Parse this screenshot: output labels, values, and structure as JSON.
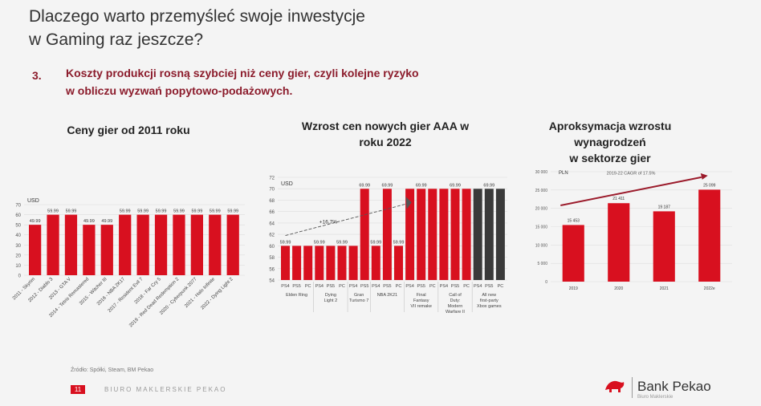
{
  "slide": {
    "title": "Dlaczego warto przemyśleć swoje inwestycje\nw Gaming raz jeszcze?",
    "point_number": "3.",
    "point_text": "Koszty produkcji rosną szybciej niż ceny gier, czyli kolejne ryzyko\nw obliczu wyzwań popytowo-podażowych."
  },
  "footer": {
    "source": "Źródło: Spółki, Steam, BM Pekao",
    "page": "11",
    "label": "BIURO MAKLERSKIE PEKAO"
  },
  "logo": {
    "name": "Bank Pekao",
    "sub": "Biuro Maklerskie"
  },
  "colors": {
    "bar_red": "#d8101f",
    "bar_dark": "#3a3a3a",
    "title_red": "#8b1b2b",
    "trend": "#9b1b2b"
  },
  "chart_data": [
    {
      "type": "bar",
      "title": "Ceny gier od 2011 roku",
      "ylabel": "USD",
      "ylim": [
        0,
        70
      ],
      "yticks": [
        0,
        10,
        20,
        30,
        40,
        50,
        60,
        70
      ],
      "categories": [
        "2011 - Skyrim",
        "2012 - Diablo 3",
        "2013 - GTA V",
        "2014 - Tetris Remastered",
        "2015 - Witcher III",
        "2016 - NBA 2K17",
        "2017 - Resident Evil 7",
        "2018 - Far Cry 5",
        "2019 - Red Dead Redemption 2",
        "2020 - Cyberpunk 2077",
        "2021 - Halo Infinite",
        "2022 - Dying Light 2"
      ],
      "values": [
        49.99,
        59.99,
        59.99,
        49.99,
        49.99,
        59.99,
        59.99,
        59.99,
        59.99,
        59.99,
        59.99,
        59.99
      ],
      "labels": [
        "49.99",
        "59.99",
        "59.99",
        "49.99",
        "49.99",
        "59.99",
        "59.99",
        "59.99",
        "59.99",
        "59.99",
        "59.99",
        "59.99"
      ]
    },
    {
      "type": "bar",
      "title": "Wzrost cen nowych gier AAA w\nroku 2022",
      "ylabel": "USD",
      "ylim": [
        54,
        72
      ],
      "yticks": [
        54,
        56,
        58,
        60,
        62,
        64,
        66,
        68,
        70,
        72
      ],
      "annotation": "+16,7%",
      "categories": [
        "PS4",
        "PS5",
        "PC",
        "PS4",
        "PS5",
        "PC",
        "PS4",
        "PS5",
        "PS4",
        "PS5",
        "PC",
        "PS4",
        "PS5",
        "PC",
        "PS4",
        "PS5",
        "PC",
        "PS4",
        "PS5",
        "PC"
      ],
      "values": [
        59.99,
        59.99,
        59.99,
        59.99,
        59.99,
        59.99,
        59.99,
        69.99,
        59.99,
        69.99,
        59.99,
        69.99,
        69.99,
        69.99,
        69.99,
        69.99,
        69.99,
        69.99,
        69.99,
        69.99
      ],
      "value_labels": [
        "59.99",
        "",
        "",
        "59.99",
        "",
        "59.99",
        "",
        "69.99",
        "59.99",
        "69.99",
        "59.99",
        "",
        "69.99",
        "",
        "",
        "69.99",
        "",
        "",
        "69.99",
        ""
      ],
      "bar_colors": [
        "red",
        "red",
        "red",
        "red",
        "red",
        "red",
        "red",
        "red",
        "red",
        "red",
        "red",
        "red",
        "red",
        "red",
        "red",
        "red",
        "red",
        "dark",
        "dark",
        "dark"
      ],
      "groups": [
        {
          "name": "Elden Ring",
          "span": [
            0,
            2
          ]
        },
        {
          "name": "Dying Light 2",
          "span": [
            3,
            5
          ]
        },
        {
          "name": "Gran Turismo 7",
          "span": [
            6,
            7
          ]
        },
        {
          "name": "NBA 2K21",
          "span": [
            8,
            10
          ]
        },
        {
          "name": "Final Fantasy VII remake",
          "span": [
            11,
            13
          ]
        },
        {
          "name": "Call of Duty: Modern Warfare II",
          "span": [
            14,
            16
          ]
        },
        {
          "name": "All new first-party Xbox games",
          "span": [
            17,
            19
          ]
        }
      ]
    },
    {
      "type": "bar",
      "title": "Aproksymacja wzrostu wynagrodzeń\nw sektorze gier",
      "ylabel": "PLN",
      "ylim": [
        0,
        30000
      ],
      "yticks": [
        0,
        5000,
        10000,
        15000,
        20000,
        25000,
        30000
      ],
      "ytick_labels": [
        "0",
        "5 000",
        "10 000",
        "15 000",
        "20 000",
        "25 000",
        "30 000"
      ],
      "annotation": "2019-22 CAGR of 17.5%",
      "categories": [
        "2019",
        "2020",
        "2021",
        "2022e"
      ],
      "values": [
        15453,
        21411,
        19187,
        25099
      ],
      "labels": [
        "15 453",
        "21 411",
        "19 187",
        "25 099"
      ]
    }
  ]
}
